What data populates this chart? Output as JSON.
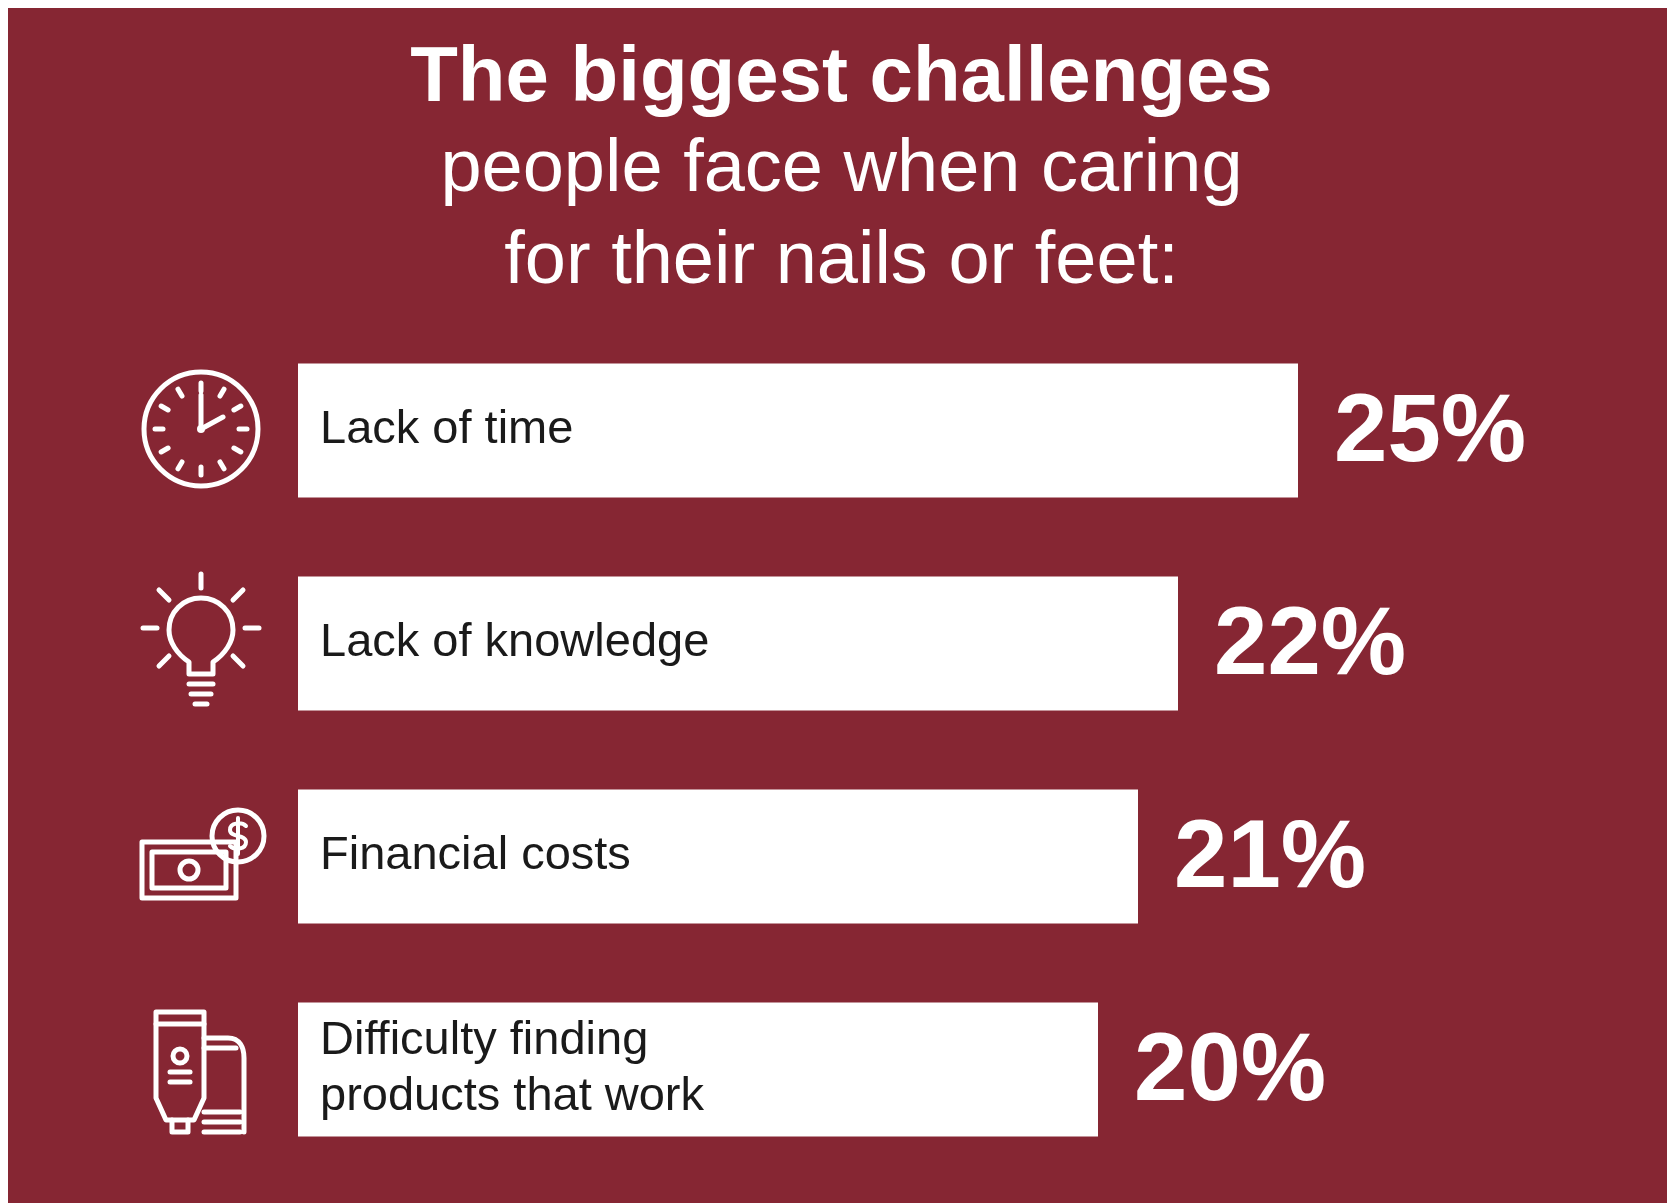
{
  "chart_data": {
    "type": "bar",
    "orientation": "horizontal",
    "title": "The biggest challenges",
    "subtitle": "people face when caring for their nails or feet:",
    "categories": [
      "Lack of time",
      "Lack of knowledge",
      "Financial costs",
      "Difficulty finding products that work"
    ],
    "values": [
      25,
      22,
      21,
      20
    ],
    "value_labels": [
      "25%",
      "22%",
      "21%",
      "20%"
    ],
    "color": "#ffffff",
    "tick_labels": false,
    "legend": false
  }
}
